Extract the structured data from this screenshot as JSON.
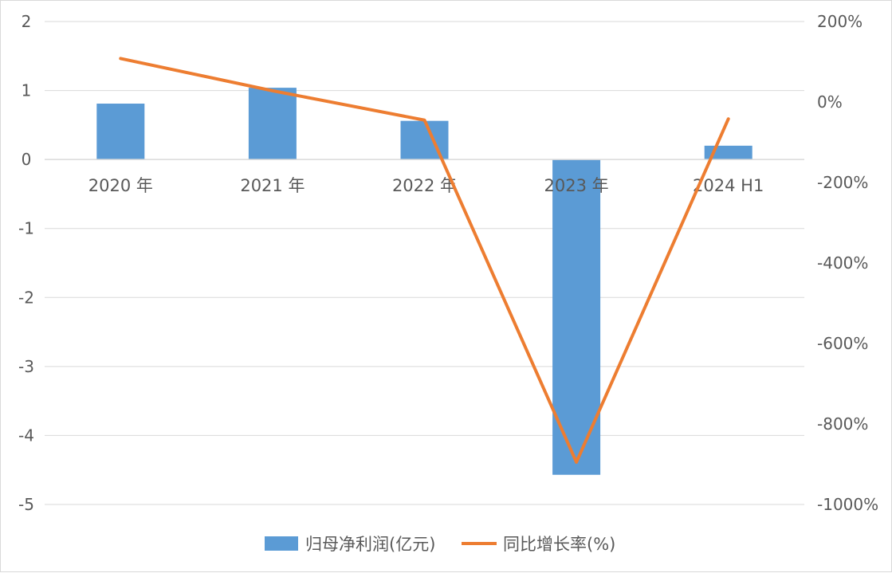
{
  "chart_data": {
    "type": "bar",
    "categories": [
      "2020 年",
      "2021 年",
      "2022 年",
      "2023 年",
      "2024 H1"
    ],
    "series": [
      {
        "name": "归母净利润(亿元)",
        "type": "bar",
        "axis": "left",
        "color": "#5b9bd5",
        "values": [
          0.81,
          1.04,
          0.56,
          -4.57,
          0.2
        ]
      },
      {
        "name": "同比增长率(%)",
        "type": "line",
        "axis": "right",
        "color": "#ed7d31",
        "values": [
          108,
          28,
          -45,
          -895,
          -42
        ]
      }
    ],
    "y_left": {
      "ylim": [
        -5,
        2
      ],
      "ticks": [
        2,
        1,
        0,
        -1,
        -2,
        -3,
        -4,
        -5
      ],
      "tick_labels": [
        "2",
        "1",
        "0",
        "-1",
        "-2",
        "-3",
        "-4",
        "-5"
      ]
    },
    "y_right": {
      "ylim": [
        -1000,
        200
      ],
      "ticks": [
        200,
        0,
        -200,
        -400,
        -600,
        -800,
        -1000
      ],
      "tick_labels": [
        "200%",
        "0%",
        "-200%",
        "-400%",
        "-600%",
        "-800%",
        "-1000%"
      ]
    },
    "grid": true,
    "legend_position": "bottom",
    "title": "",
    "xlabel": "",
    "ylabel": ""
  }
}
